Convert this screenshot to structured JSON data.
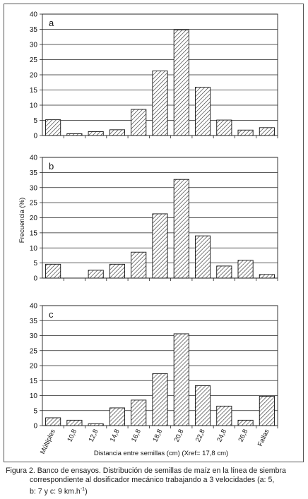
{
  "figure": {
    "ylabel": "Frecuencia (%)",
    "xlabel": "Distancia entre semillas (cm) (Xref= 17,8 cm)",
    "caption_line1": "Figura 2. Banco de ensayos. Distribución de semillas de maíz en la línea de siembra",
    "caption_line2": "correspondiente al dosificador mecánico trabajando a 3 velocidades (a: 5,",
    "caption_line3": "b: 7 y c: 9 km.h",
    "caption_sup": "-1",
    "caption_end": ")"
  },
  "chart_data": [
    {
      "type": "bar",
      "panel_label": "a",
      "categories": [
        "Múltiples",
        "10,8",
        "12,8",
        "14,8",
        "16,8",
        "18,8",
        "20,8",
        "22,8",
        "24,8",
        "26,8",
        "Fallas"
      ],
      "values": [
        5.2,
        0.6,
        1.3,
        1.9,
        8.6,
        21.3,
        34.8,
        15.9,
        5.1,
        1.8,
        2.6
      ],
      "ylim": [
        0,
        40
      ],
      "yticks": [
        0,
        5,
        10,
        15,
        20,
        25,
        30,
        35,
        40
      ],
      "grid": true
    },
    {
      "type": "bar",
      "panel_label": "b",
      "categories": [
        "Múltiples",
        "10,8",
        "12,8",
        "14,8",
        "16,8",
        "18,8",
        "20,8",
        "22,8",
        "24,8",
        "26,8",
        "Fallas"
      ],
      "values": [
        4.6,
        0,
        2.6,
        4.6,
        8.6,
        21.3,
        32.7,
        14.0,
        4.0,
        5.9,
        1.2
      ],
      "ylim": [
        0,
        40
      ],
      "yticks": [
        0,
        5,
        10,
        15,
        20,
        25,
        30,
        35,
        40
      ],
      "grid": true
    },
    {
      "type": "bar",
      "panel_label": "c",
      "categories": [
        "Múltiples",
        "10,8",
        "12,8",
        "14,8",
        "16,8",
        "18,8",
        "20,8",
        "22,8",
        "24,8",
        "26,8",
        "Fallas"
      ],
      "values": [
        2.6,
        1.8,
        0.6,
        5.9,
        8.5,
        17.3,
        30.6,
        13.3,
        6.5,
        1.8,
        9.8
      ],
      "ylim": [
        0,
        40
      ],
      "yticks": [
        0,
        5,
        10,
        15,
        20,
        25,
        30,
        35,
        40
      ],
      "grid": true,
      "x_tick_labels_shown": true
    }
  ]
}
